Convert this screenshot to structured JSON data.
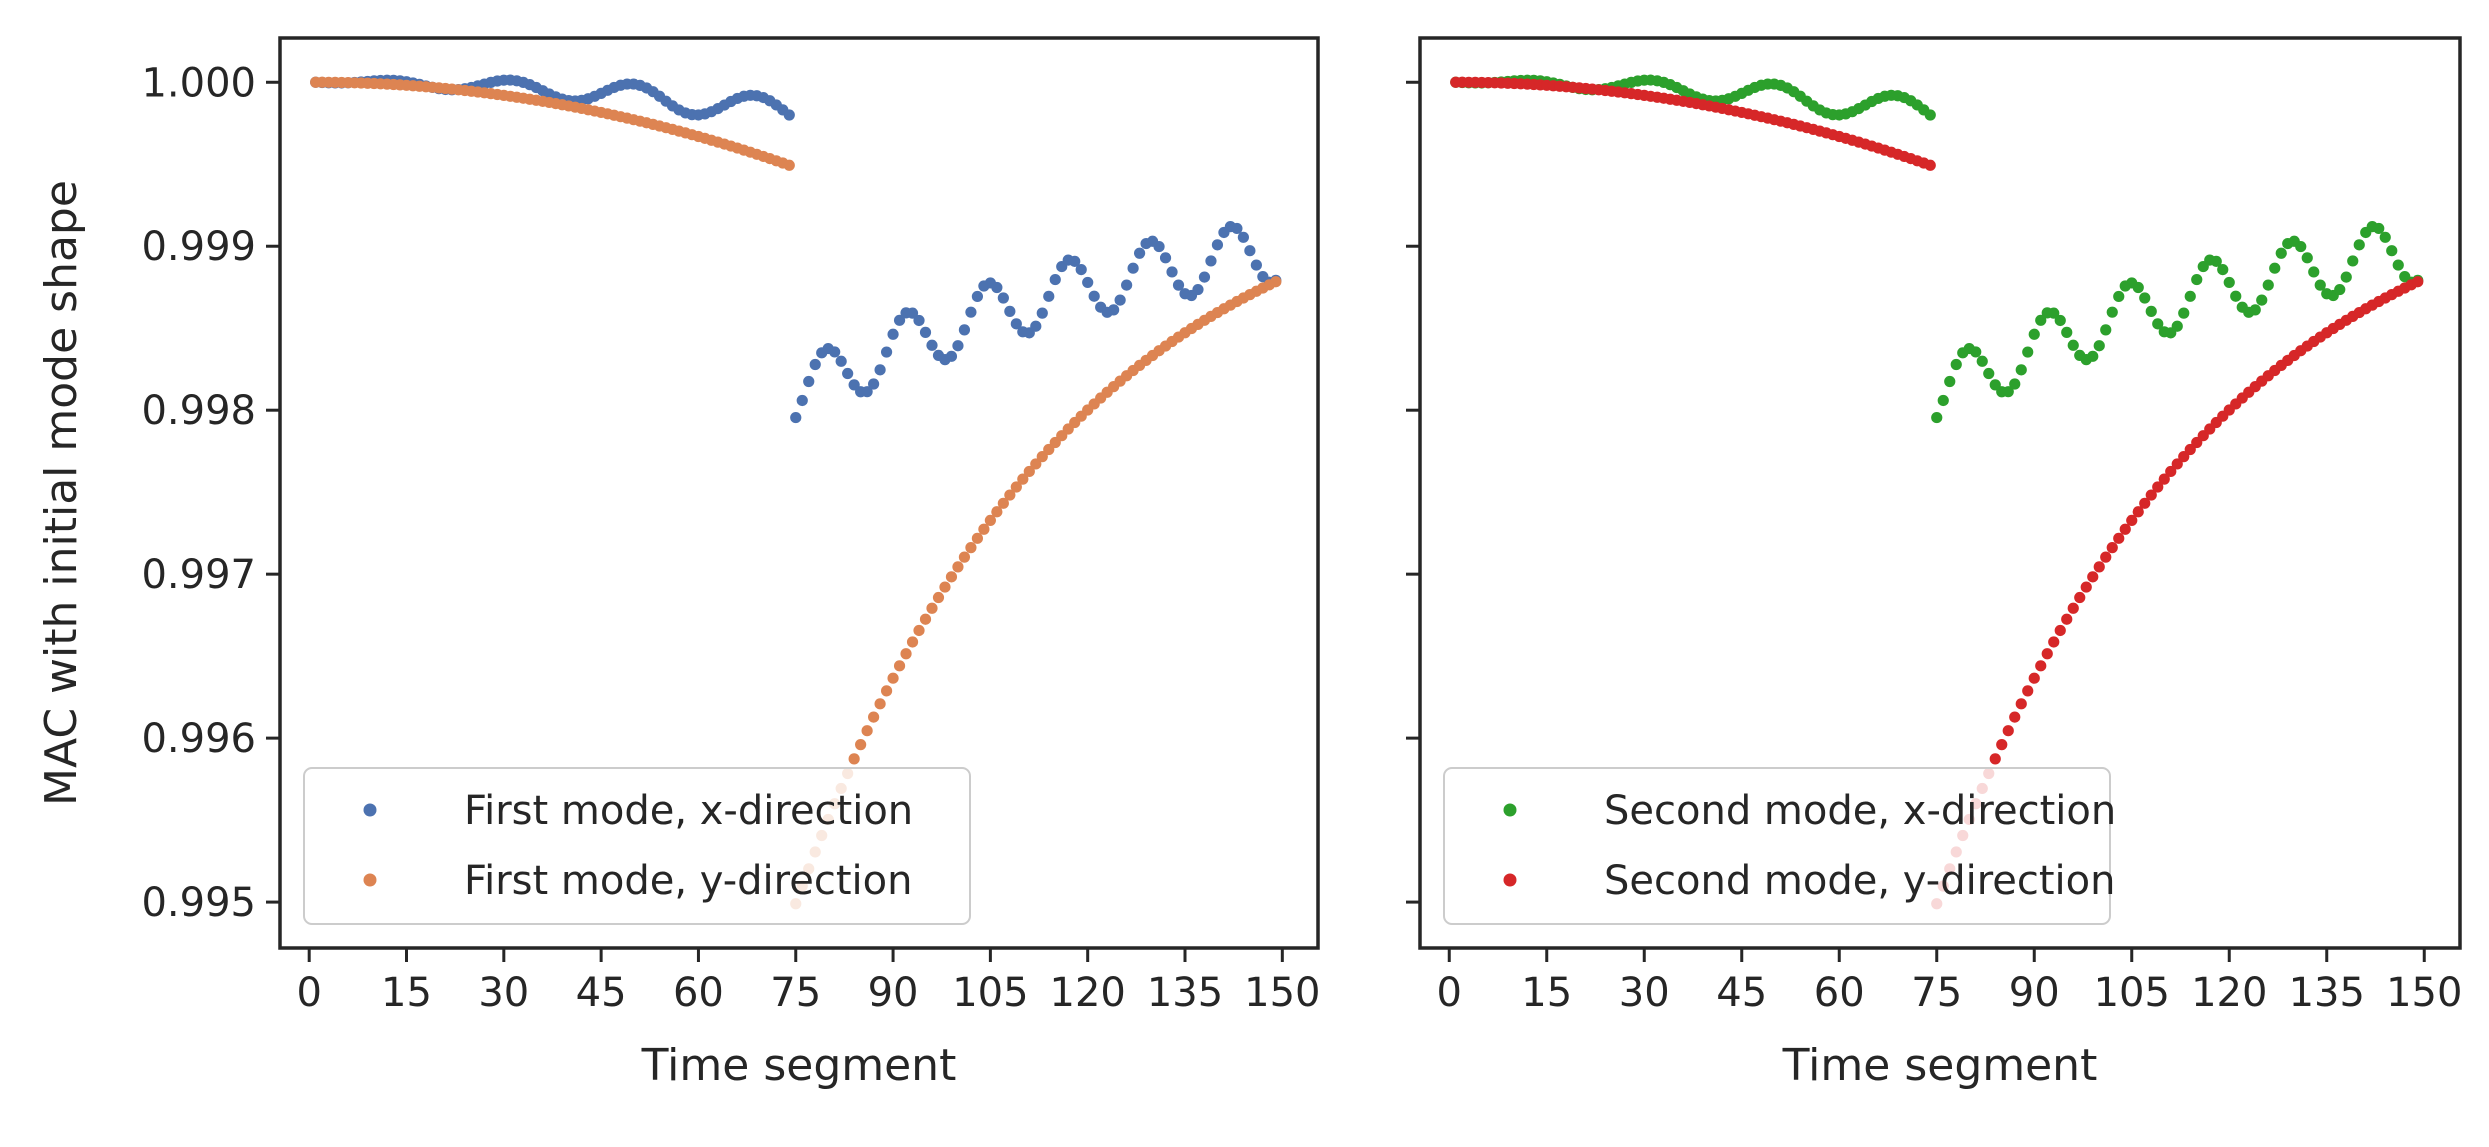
{
  "chart_data": [
    {
      "type": "scatter",
      "panel": "left",
      "title": "",
      "xlabel": "Time segment",
      "ylabel": "MAC with initial mode shape",
      "xlim": [
        -4.5,
        155.5
      ],
      "ylim": [
        0.99472,
        1.00027
      ],
      "xticks": [
        0,
        15,
        30,
        45,
        60,
        75,
        90,
        105,
        120,
        135,
        150
      ],
      "yticks": [
        0.995,
        0.996,
        0.997,
        0.998,
        0.999,
        1.0
      ],
      "ytick_labels": [
        "0.995",
        "0.996",
        "0.997",
        "0.998",
        "0.999",
        "1.000"
      ],
      "legend_position": "lower-left",
      "grid": false,
      "series": [
        {
          "name": "First mode, x-direction",
          "color": "#4c72b0",
          "pattern": "x-direction"
        },
        {
          "name": "First mode, y-direction",
          "color": "#dd8452",
          "pattern": "y-direction"
        }
      ]
    },
    {
      "type": "scatter",
      "panel": "right",
      "title": "",
      "xlabel": "Time segment",
      "ylabel": "",
      "xlim": [
        -4.5,
        155.5
      ],
      "ylim": [
        0.99472,
        1.00027
      ],
      "xticks": [
        0,
        15,
        30,
        45,
        60,
        75,
        90,
        105,
        120,
        135,
        150
      ],
      "yticks": [
        0.995,
        0.996,
        0.997,
        0.998,
        0.999,
        1.0
      ],
      "ytick_labels": [
        "",
        "",
        "",
        "",
        "",
        ""
      ],
      "legend_position": "lower-left",
      "grid": false,
      "series": [
        {
          "name": "Second mode, x-direction",
          "color": "#2ca02c",
          "pattern": "x-direction"
        },
        {
          "name": "Second mode, y-direction",
          "color": "#d62728",
          "pattern": "y-direction"
        }
      ]
    }
  ]
}
